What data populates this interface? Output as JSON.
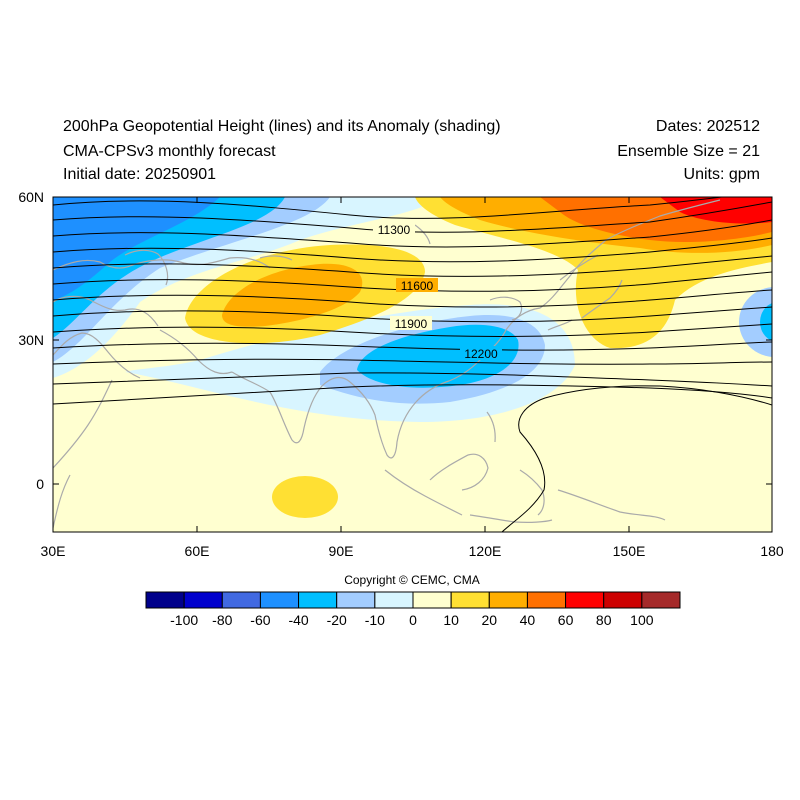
{
  "header": {
    "title": "200hPa Geopotential Height (lines) and its Anomaly (shading)",
    "model": "CMA-CPSv3 monthly forecast",
    "initial_date": "Initial date: 20250901",
    "dates": "Dates: 202512",
    "ensemble": "Ensemble Size = 21",
    "units": "Units: gpm"
  },
  "axes": {
    "x_ticks": [
      "30E",
      "60E",
      "90E",
      "120E",
      "150E",
      "180"
    ],
    "y_ticks": [
      "60N",
      "30N",
      "0"
    ]
  },
  "contour_labels": [
    "11300",
    "11600",
    "11900",
    "12200"
  ],
  "copyright": "Copyright © CEMC, CMA",
  "colorbar": {
    "labels": [
      "-100",
      "-80",
      "-60",
      "-40",
      "-20",
      "-10",
      "0",
      "10",
      "20",
      "40",
      "60",
      "80",
      "100"
    ],
    "colors": [
      "#00008b",
      "#0000cd",
      "#4169e1",
      "#1e90ff",
      "#00bfff",
      "#a3cdff",
      "#d8f5ff",
      "#ffffd0",
      "#ffe033",
      "#ffae00",
      "#ff7000",
      "#ff0000",
      "#cc0000",
      "#a52a2a"
    ]
  },
  "colors": {
    "land": "#aaaaaa",
    "contour": "#000000"
  }
}
